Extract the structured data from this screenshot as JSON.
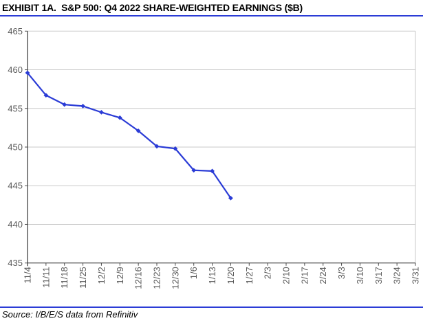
{
  "header": {
    "title": "EXHIBIT 1A.  S&P 500: Q4 2022 SHARE-WEIGHTED EARNINGS ($B)"
  },
  "footer": {
    "source": "Source: I/B/E/S data from Refinitiv"
  },
  "colors": {
    "line": "#2B3CD6",
    "rule": "#2B3CD6",
    "grid": "#C9C9C9",
    "plot_border": "#C9C9C9",
    "axis": "#333333",
    "tick": "#4D4D4D",
    "tick_label": "#595959"
  },
  "chart_data": {
    "type": "line",
    "title": "EXHIBIT 1A.  S&P 500: Q4 2022 SHARE-WEIGHTED EARNINGS ($B)",
    "xlabel": "",
    "ylabel": "",
    "ylim": [
      435,
      465
    ],
    "y_ticks": [
      435,
      440,
      445,
      450,
      455,
      460,
      465
    ],
    "grid": true,
    "legend_position": "none",
    "x_labels": [
      "11/4",
      "11/11",
      "11/18",
      "11/25",
      "12/2",
      "12/9",
      "12/16",
      "12/23",
      "12/30",
      "1/6",
      "1/13",
      "1/20",
      "1/27",
      "2/3",
      "2/10",
      "2/17",
      "2/24",
      "3/3",
      "3/10",
      "3/17",
      "3/24",
      "3/31"
    ],
    "series": [
      {
        "name": "Q4 2022 share-weighted earnings ($B)",
        "marker": "diamond",
        "x": [
          "11/4",
          "11/11",
          "11/18",
          "11/25",
          "12/2",
          "12/9",
          "12/16",
          "12/23",
          "12/30",
          "1/6",
          "1/13",
          "1/20"
        ],
        "values": [
          459.6,
          456.7,
          455.5,
          455.3,
          454.5,
          453.8,
          452.1,
          450.1,
          449.8,
          447.0,
          446.9,
          443.4
        ]
      }
    ]
  }
}
